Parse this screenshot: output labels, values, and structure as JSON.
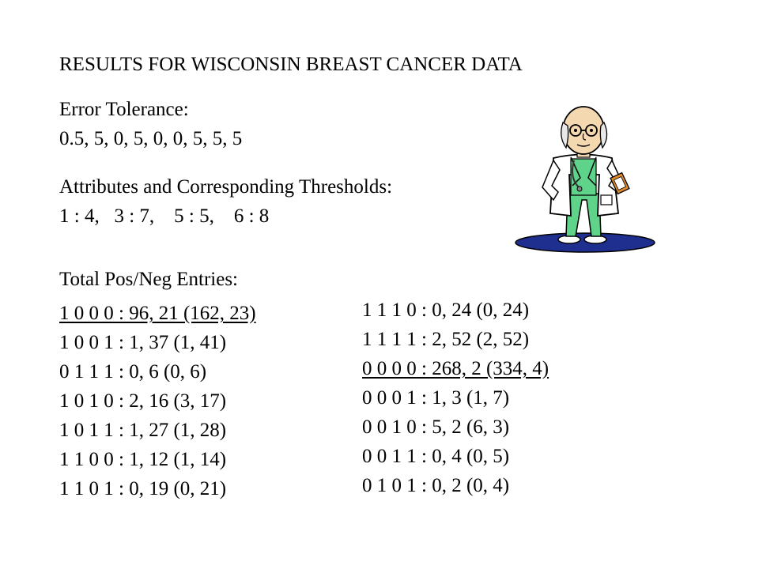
{
  "slide": {
    "title": "RESULTS FOR WISCONSIN BREAST CANCER DATA",
    "error_tolerance_label": "Error Tolerance:",
    "error_tolerance_values": "0.5, 5, 0, 5, 0, 0, 5, 5, 5",
    "attributes_label": "Attributes and Corresponding Thresholds:",
    "attributes_values": "1 : 4,   3 : 7,    5 : 5,    6 : 8",
    "totals_label": "Total Pos/Neg Entries:",
    "left_entries": [
      {
        "text": "1 0 0 0 : 96, 21 (162, 23)",
        "underline": true
      },
      {
        "text": "1 0 0 1 : 1, 37 (1, 41)",
        "underline": false
      },
      {
        "text": "0 1 1 1 : 0, 6 (0, 6)",
        "underline": false
      },
      {
        "text": "1 0 1 0 : 2, 16 (3, 17)",
        "underline": false
      },
      {
        "text": "1 0 1 1 : 1, 27 (1, 28)",
        "underline": false
      },
      {
        "text": "1 1 0 0 : 1, 12 (1, 14)",
        "underline": false
      },
      {
        "text": "1 1 0 1 : 0, 19 (0, 21)",
        "underline": false
      }
    ],
    "right_entries": [
      {
        "text": "1 1 1 0 : 0, 24 (0, 24)",
        "underline": false
      },
      {
        "text": "1 1 1 1 : 2, 52 (2, 52)",
        "underline": false
      },
      {
        "text": "0 0 0 0 : 268, 2 (334, 4)",
        "underline": true
      },
      {
        "text": "0 0 0 1 : 1, 3 (1, 7)",
        "underline": false
      },
      {
        "text": "0 0 1 0 : 5, 2 (6, 3)",
        "underline": false
      },
      {
        "text": "0 0 1 1 : 0, 4 (0, 5)",
        "underline": false
      },
      {
        "text": "0 1 0 1 : 0, 2 (0, 4)",
        "underline": false
      }
    ]
  },
  "clipart": {
    "icon": "doctor-clipart-icon",
    "coat_color": "#ffffff",
    "scrubs_color": "#5fd38a",
    "base_color": "#1f2f8f",
    "clipboard_color": "#e08a2a"
  }
}
